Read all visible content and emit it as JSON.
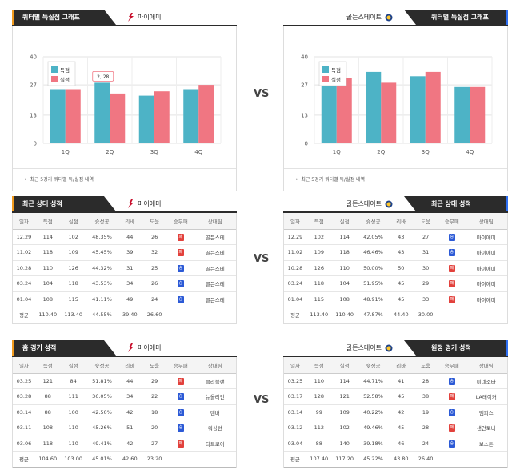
{
  "miami": {
    "name": "마이애미"
  },
  "gsw": {
    "name": "골든스테이트"
  },
  "vs_label": "VS",
  "quarter_graph": {
    "title": "쿼터별 득실점 그래프",
    "note": "최근 5경기 쿼터별 득/실점 내역",
    "legend": [
      "득점",
      "실점"
    ],
    "tooltip": "2, 28",
    "colors": {
      "score": "#4db3c6",
      "lose": "#f07682"
    }
  },
  "chart_data": [
    {
      "type": "bar",
      "team": "마이애미",
      "categories": [
        "1Q",
        "2Q",
        "3Q",
        "4Q"
      ],
      "series": [
        {
          "name": "득점",
          "values": [
            25,
            28,
            22,
            25
          ]
        },
        {
          "name": "실점",
          "values": [
            25,
            23,
            24,
            27
          ]
        }
      ],
      "yticks": [
        0,
        13,
        27,
        40
      ],
      "ylim": [
        0,
        40
      ]
    },
    {
      "type": "bar",
      "team": "골든스테이트",
      "categories": [
        "1Q",
        "2Q",
        "3Q",
        "4Q"
      ],
      "series": [
        {
          "name": "득점",
          "values": [
            31,
            33,
            31,
            26
          ]
        },
        {
          "name": "실점",
          "values": [
            30,
            28,
            33,
            26
          ]
        }
      ],
      "yticks": [
        0,
        13,
        27,
        40
      ],
      "ylim": [
        0,
        40
      ]
    }
  ],
  "recent": {
    "title": "최근 상대 성적",
    "headers": [
      "일자",
      "득점",
      "실점",
      "슛성공",
      "리바",
      "도움",
      "승무패",
      "상대팀"
    ],
    "miami_rows": [
      [
        "12.29",
        "114",
        "102",
        "48.35%",
        "44",
        "26",
        "패",
        "골든스테"
      ],
      [
        "11.02",
        "118",
        "109",
        "45.45%",
        "39",
        "32",
        "패",
        "골든스테"
      ],
      [
        "10.28",
        "110",
        "126",
        "44.32%",
        "31",
        "25",
        "승",
        "골든스테"
      ],
      [
        "03.24",
        "104",
        "118",
        "43.53%",
        "34",
        "26",
        "승",
        "골든스테"
      ],
      [
        "01.04",
        "108",
        "115",
        "41.11%",
        "49",
        "24",
        "승",
        "골든스테"
      ]
    ],
    "miami_avg": [
      "평균",
      "110.40",
      "113.40",
      "44.55%",
      "39.40",
      "26.60",
      "",
      ""
    ],
    "gsw_rows": [
      [
        "12.29",
        "102",
        "114",
        "42.05%",
        "43",
        "27",
        "승",
        "마이애미"
      ],
      [
        "11.02",
        "109",
        "118",
        "46.46%",
        "43",
        "31",
        "승",
        "마이애미"
      ],
      [
        "10.28",
        "126",
        "110",
        "50.00%",
        "50",
        "30",
        "패",
        "마이애미"
      ],
      [
        "03.24",
        "118",
        "104",
        "51.95%",
        "45",
        "29",
        "패",
        "마이애미"
      ],
      [
        "01.04",
        "115",
        "108",
        "48.91%",
        "45",
        "33",
        "패",
        "마이애미"
      ]
    ],
    "gsw_avg": [
      "평균",
      "113.40",
      "110.40",
      "47.87%",
      "44.40",
      "30.00",
      "",
      ""
    ]
  },
  "home": {
    "title": "홈 경기 성적",
    "headers": [
      "일자",
      "득점",
      "실점",
      "슛성공",
      "리바",
      "도움",
      "승무패",
      "상대팀"
    ],
    "rows": [
      [
        "03.25",
        "121",
        "84",
        "51.81%",
        "44",
        "29",
        "패",
        "클리블랜"
      ],
      [
        "03.28",
        "88",
        "111",
        "36.05%",
        "34",
        "22",
        "승",
        "뉴올리언"
      ],
      [
        "03.14",
        "88",
        "100",
        "42.50%",
        "42",
        "18",
        "승",
        "덴버"
      ],
      [
        "03.11",
        "108",
        "110",
        "45.26%",
        "51",
        "20",
        "승",
        "워싱턴"
      ],
      [
        "03.06",
        "118",
        "110",
        "49.41%",
        "42",
        "27",
        "패",
        "디트로이"
      ]
    ],
    "avg": [
      "평균",
      "104.60",
      "103.00",
      "45.01%",
      "42.60",
      "23.20",
      "",
      ""
    ]
  },
  "away": {
    "title": "원정 경기 성적",
    "headers": [
      "일자",
      "득점",
      "실점",
      "슛성공",
      "리바",
      "도움",
      "승무패",
      "상대팀"
    ],
    "rows": [
      [
        "03.25",
        "110",
        "114",
        "44.71%",
        "41",
        "28",
        "승",
        "미네소타"
      ],
      [
        "03.17",
        "128",
        "121",
        "52.58%",
        "45",
        "38",
        "패",
        "LA레이커"
      ],
      [
        "03.14",
        "99",
        "109",
        "40.22%",
        "42",
        "19",
        "승",
        "멤피스"
      ],
      [
        "03.12",
        "112",
        "102",
        "49.46%",
        "45",
        "28",
        "패",
        "샌안토니"
      ],
      [
        "03.04",
        "88",
        "140",
        "39.18%",
        "46",
        "24",
        "승",
        "보스톤"
      ]
    ],
    "avg": [
      "평균",
      "107.40",
      "117.20",
      "45.22%",
      "43.80",
      "26.40",
      "",
      ""
    ]
  }
}
